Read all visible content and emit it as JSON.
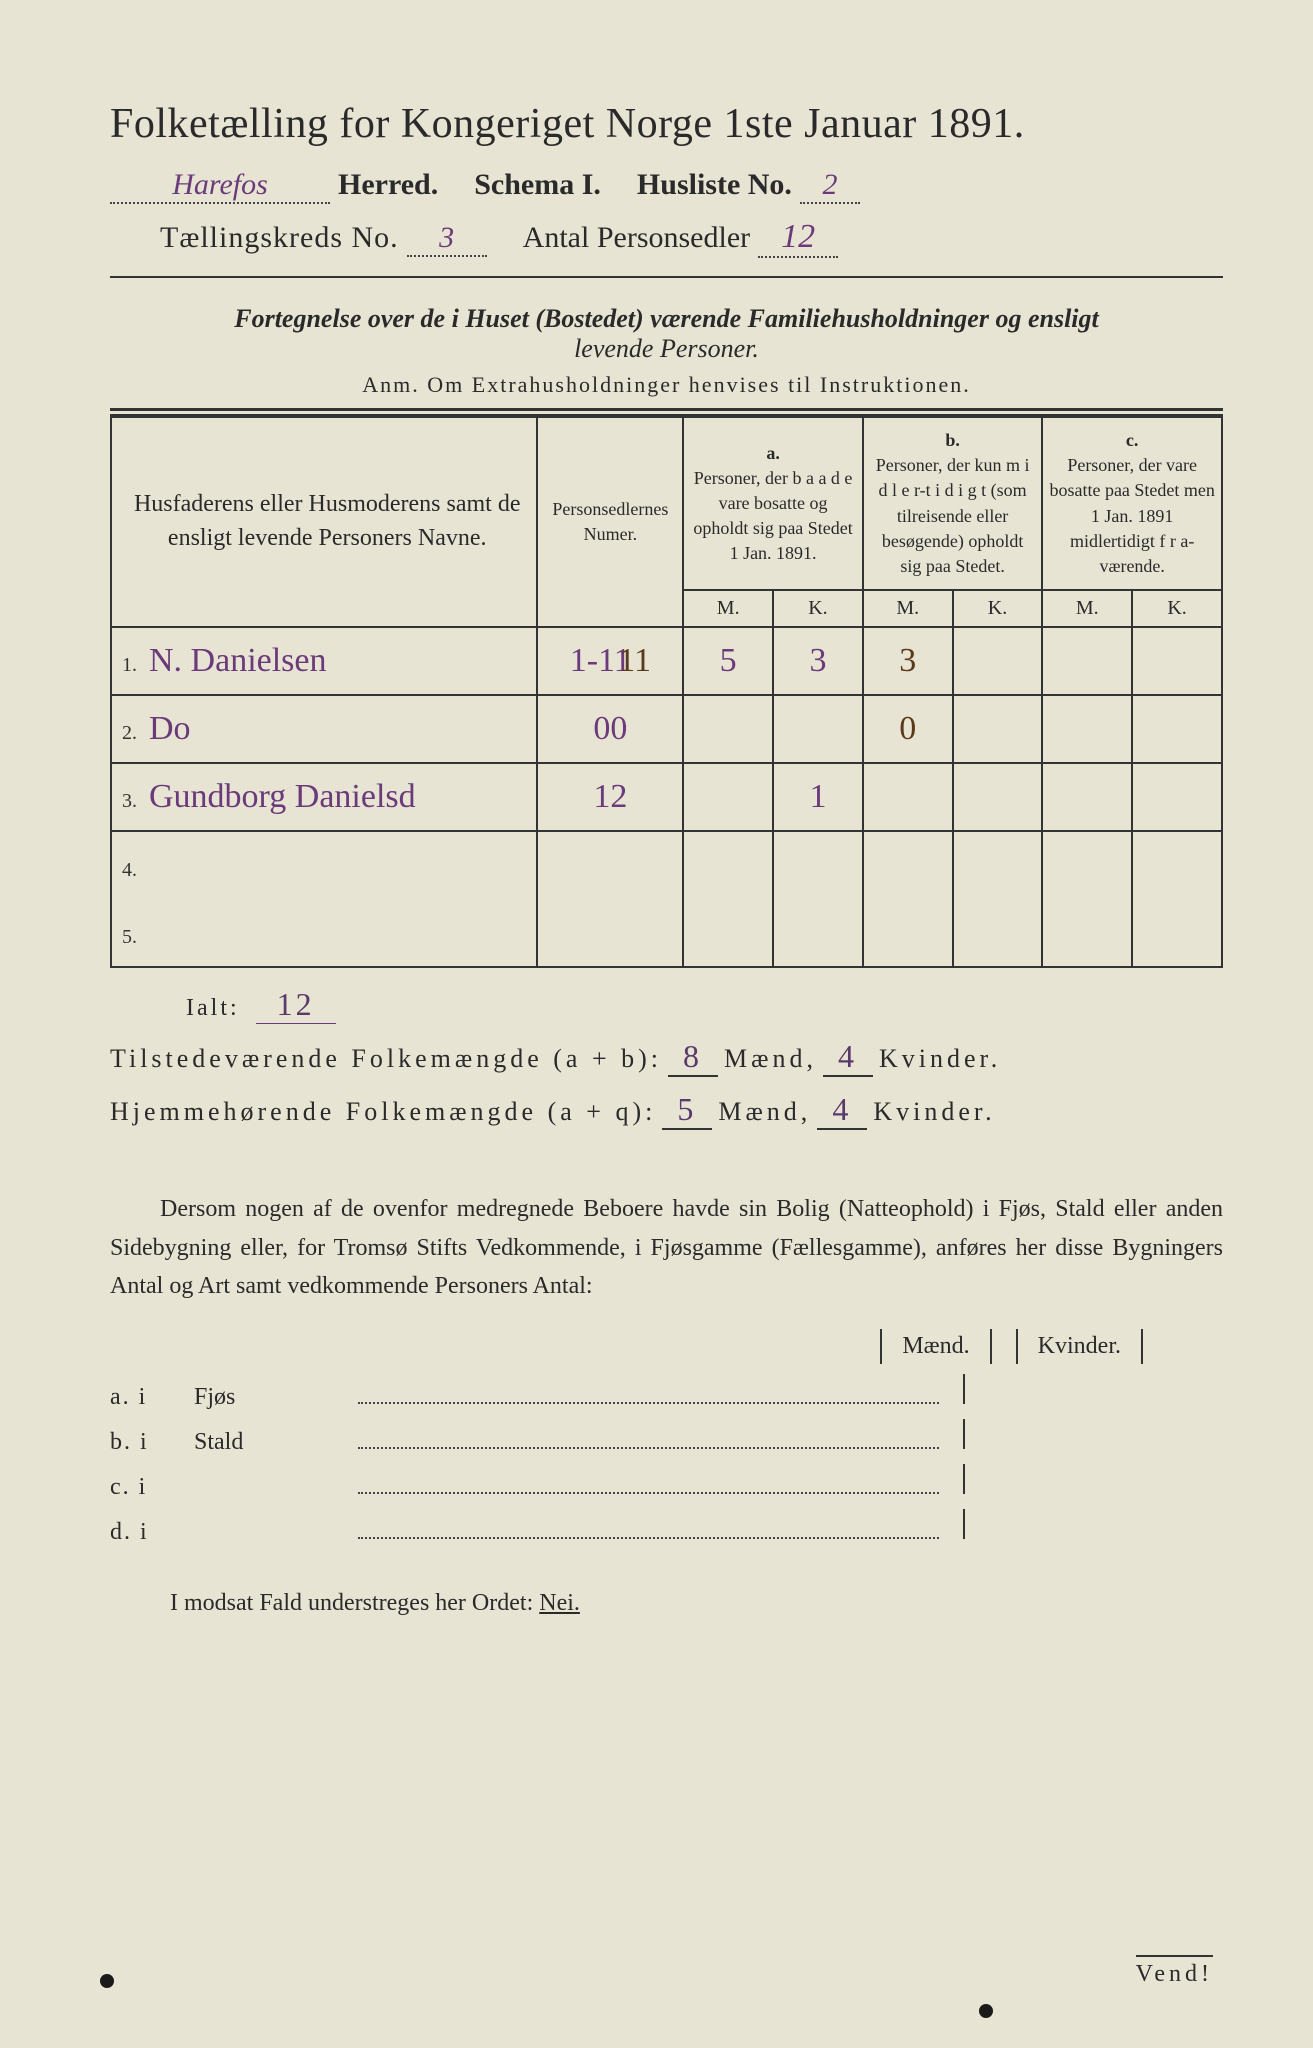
{
  "background_color": "#e8e4d4",
  "text_color": "#2a2a2a",
  "handwriting_color": "#6b3a7a",
  "handwriting_brown": "#5a3a1a",
  "title": "Folketælling for Kongeriget Norge 1ste Januar 1891.",
  "header": {
    "herred_value": "Harefos",
    "herred_label": "Herred.",
    "schema_label": "Schema I.",
    "husliste_label": "Husliste No.",
    "husliste_value": "2",
    "kreds_label": "Tællingskreds No.",
    "kreds_value": "3",
    "personsedler_label": "Antal Personsedler",
    "personsedler_value": "12"
  },
  "subtitle_bold": "Fortegnelse over de i Huset (Bostedet) værende Familiehusholdninger og ensligt",
  "subtitle_em": "levende Personer.",
  "anm": "Anm.  Om Extrahusholdninger henvises til Instruktionen.",
  "table": {
    "col_names": "Husfaderens eller Husmoderens samt de ensligt levende Personers Navne.",
    "col_nums": "Personsedlernes Numer.",
    "col_a_label": "a.",
    "col_a": "Personer, der b a a d e vare bosatte og opholdt sig paa Stedet 1 Jan. 1891.",
    "col_b_label": "b.",
    "col_b": "Personer, der kun m i d l e r-t i d i g t (som tilreisende eller besøgende) opholdt sig paa Stedet.",
    "col_c_label": "c.",
    "col_c": "Personer, der vare bosatte paa Stedet men 1 Jan. 1891 midlertidigt f r a-værende.",
    "m": "M.",
    "k": "K.",
    "rows": [
      {
        "n": "1.",
        "name": "N. Danielsen",
        "nums": "1-11",
        "brownover": "11",
        "aM": "5",
        "aK": "3",
        "bM": "3",
        "bK": "",
        "cM": "",
        "cK": ""
      },
      {
        "n": "2.",
        "name": "Do",
        "nums": "00",
        "brownover": "",
        "aM": "",
        "aK": "",
        "bM": "0",
        "bK": "",
        "cM": "",
        "cK": ""
      },
      {
        "n": "3.",
        "name": "Gundborg Danielsd",
        "nums": "12",
        "brownover": "",
        "aM": "",
        "aK": "1",
        "bM": "",
        "bK": "",
        "cM": "",
        "cK": ""
      },
      {
        "n": "4.",
        "name": "",
        "nums": "",
        "brownover": "",
        "aM": "",
        "aK": "",
        "bM": "",
        "bK": "",
        "cM": "",
        "cK": ""
      },
      {
        "n": "5.",
        "name": "",
        "nums": "",
        "brownover": "",
        "aM": "",
        "aK": "",
        "bM": "",
        "bK": "",
        "cM": "",
        "cK": ""
      }
    ]
  },
  "ialt_label": "Ialt:",
  "ialt_value": "12",
  "tot1": {
    "label": "Tilstedeværende Folkemængde (a + b):",
    "m": "8",
    "k": "4",
    "mlab": "Mænd,",
    "klab": "Kvinder."
  },
  "tot2": {
    "label": "Hjemmehørende Folkemængde (a + q):",
    "m": "5",
    "k": "4",
    "mlab": "Mænd,",
    "klab": "Kvinder."
  },
  "para": "Dersom nogen af de ovenfor medregnede Beboere havde sin Bolig (Natteophold) i Fjøs, Stald eller anden Sidebygning eller, for Tromsø Stifts Vedkommende, i Fjøsgamme (Fællesgamme), anføres her disse Bygningers Antal og Art samt vedkommende Personers Antal:",
  "list_head_m": "Mænd.",
  "list_head_k": "Kvinder.",
  "list": [
    {
      "l": "a.  i",
      "n": "Fjøs"
    },
    {
      "l": "b.  i",
      "n": "Stald"
    },
    {
      "l": "c.  i",
      "n": ""
    },
    {
      "l": "d.  i",
      "n": ""
    }
  ],
  "nei_line": "I modsat Fald understreges her Ordet:",
  "nei": "Nei.",
  "vend": "Vend!"
}
